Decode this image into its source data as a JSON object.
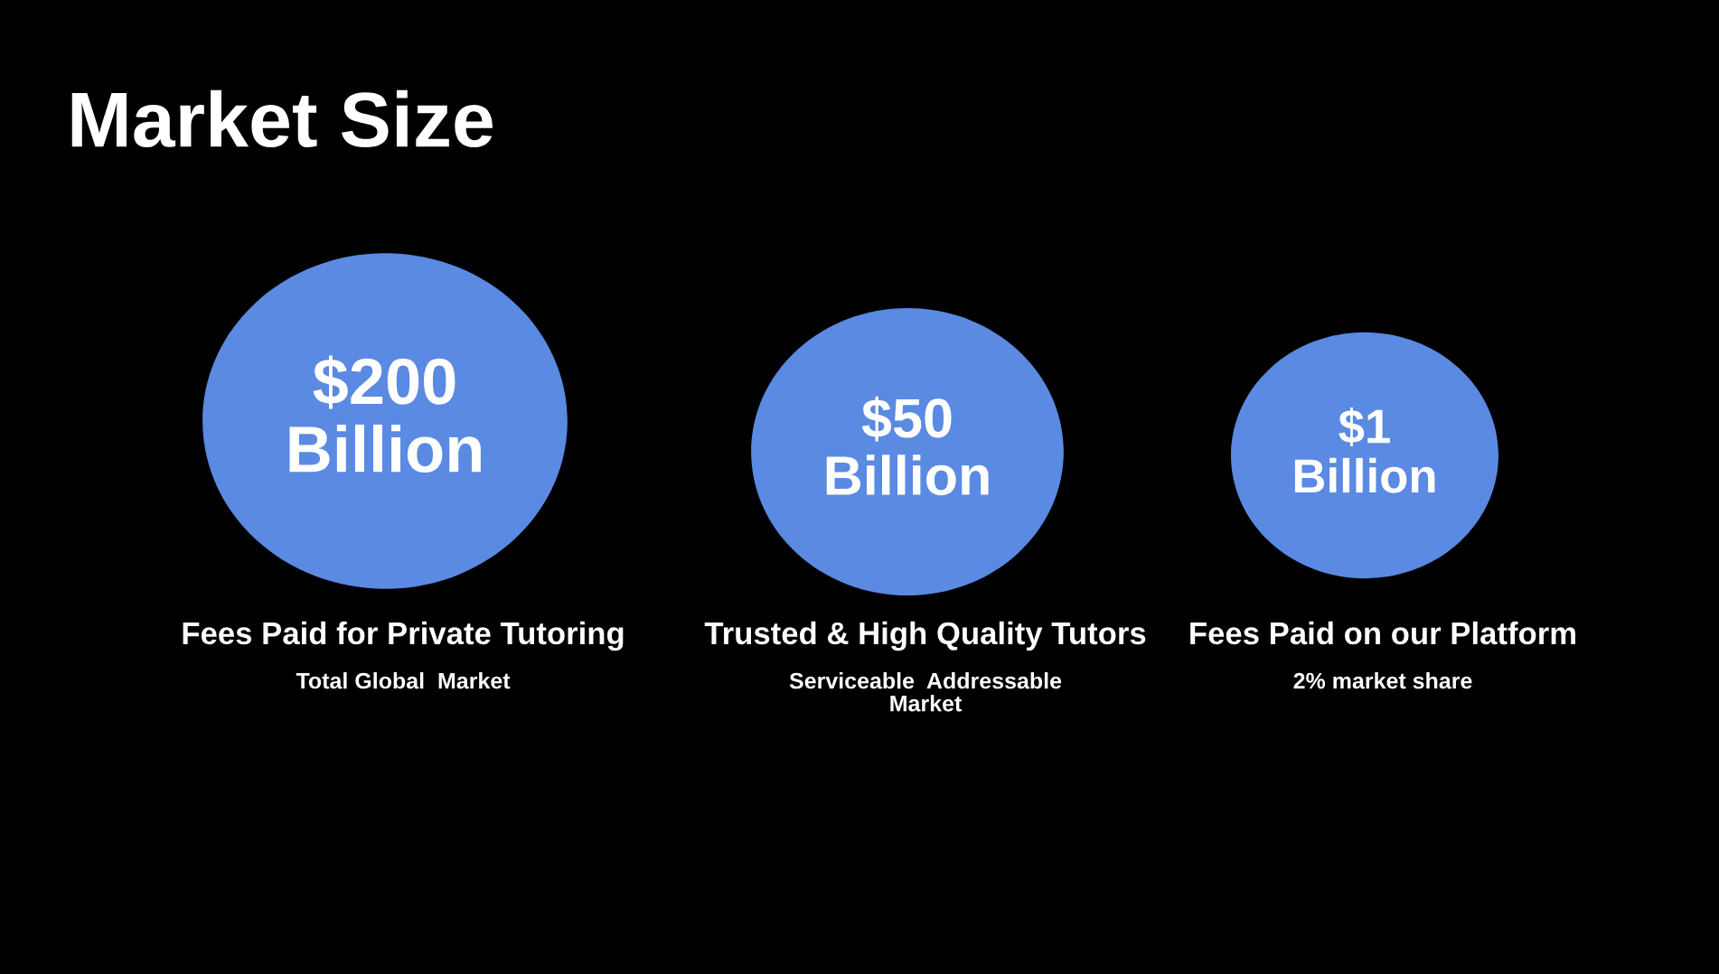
{
  "chart_data": {
    "type": "other",
    "title": "Market Size",
    "categories": [
      "Fees Paid for Private Tutoring",
      "Trusted & High Quality Tutors",
      "Fees Paid on our Platform"
    ],
    "values": [
      200,
      50,
      1
    ],
    "value_labels": [
      "$200\nBillion",
      "$50\nBillion",
      "$1\nBillion"
    ],
    "color": "#5a8ae2",
    "annotations": [
      "Total Global  Market",
      "Serviceable  Addressable\nMarket",
      "2% market share"
    ]
  }
}
